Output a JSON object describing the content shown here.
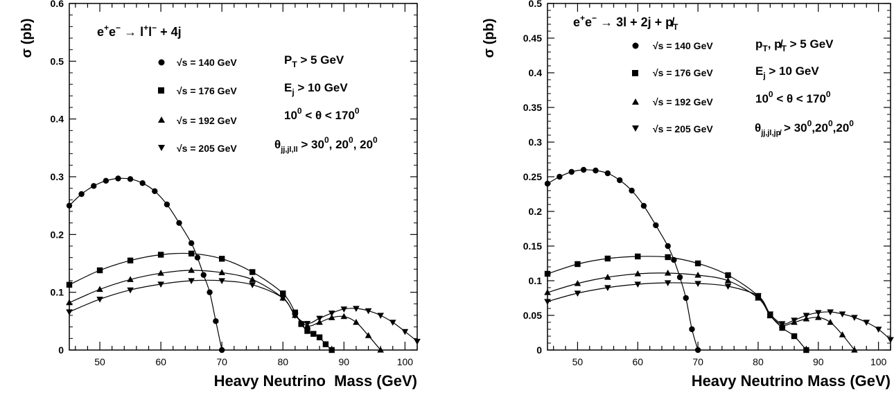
{
  "chart_data": [
    {
      "type": "line",
      "process": "e⁺e⁻ → l⁺l⁻ + 4j",
      "xlabel": "Heavy Neutrino  Mass (GeV)",
      "ylabel": "σ (pb)",
      "xlim": [
        45,
        102
      ],
      "ylim": [
        0,
        0.6
      ],
      "xticks": [
        "50",
        "60",
        "70",
        "80",
        "90",
        "100"
      ],
      "xtick_values": [
        50,
        60,
        70,
        80,
        90,
        100
      ],
      "yticks": [
        "0",
        "0.1",
        "0.2",
        "0.3",
        "0.4",
        "0.5",
        "0.6"
      ],
      "ytick_values": [
        0,
        0.1,
        0.2,
        0.3,
        0.4,
        0.5,
        0.6
      ],
      "cuts": [
        "P_T > 5 GeV",
        "E_j > 10 GeV",
        "10^0 < θ < 170^0",
        "θ_jj,jl,ll > 30^0, 20^0, 20^0"
      ],
      "series": [
        {
          "name": "√s = 140 GeV",
          "marker": "circle",
          "x": [
            45,
            47,
            49,
            51,
            53,
            55,
            57,
            59,
            61,
            63,
            65,
            66,
            67,
            68,
            69,
            70
          ],
          "y": [
            0.25,
            0.27,
            0.284,
            0.293,
            0.297,
            0.296,
            0.289,
            0.275,
            0.252,
            0.22,
            0.185,
            0.16,
            0.13,
            0.1,
            0.05,
            0.0
          ]
        },
        {
          "name": "√s = 176 GeV",
          "marker": "square",
          "x": [
            45,
            50,
            55,
            60,
            65,
            70,
            75,
            80,
            82,
            83,
            84,
            85,
            86,
            87,
            88
          ],
          "y": [
            0.113,
            0.138,
            0.155,
            0.165,
            0.167,
            0.158,
            0.135,
            0.098,
            0.065,
            0.045,
            0.033,
            0.028,
            0.022,
            0.01,
            0.0
          ]
        },
        {
          "name": "√s = 192 GeV",
          "marker": "triangle-up",
          "x": [
            45,
            50,
            55,
            60,
            65,
            70,
            75,
            80,
            82,
            84,
            86,
            88,
            90,
            92,
            94,
            96
          ],
          "y": [
            0.082,
            0.105,
            0.122,
            0.133,
            0.138,
            0.134,
            0.122,
            0.09,
            0.06,
            0.042,
            0.048,
            0.056,
            0.058,
            0.048,
            0.025,
            0.0
          ]
        },
        {
          "name": "√s = 205 GeV",
          "marker": "triangle-down",
          "x": [
            45,
            50,
            55,
            60,
            65,
            70,
            75,
            80,
            82,
            84,
            86,
            88,
            90,
            92,
            94,
            96,
            98,
            100,
            102
          ],
          "y": [
            0.066,
            0.088,
            0.104,
            0.114,
            0.12,
            0.12,
            0.113,
            0.09,
            0.06,
            0.046,
            0.055,
            0.064,
            0.071,
            0.072,
            0.068,
            0.06,
            0.048,
            0.032,
            0.015
          ]
        }
      ]
    },
    {
      "type": "line",
      "process": "e⁺e⁻ → 3l + 2j + p̸_T",
      "xlabel": "Heavy Neutrino Mass (GeV)",
      "ylabel": "σ (pb)",
      "xlim": [
        45,
        102
      ],
      "ylim": [
        0,
        0.5
      ],
      "xticks": [
        "50",
        "60",
        "70",
        "80",
        "90",
        "100"
      ],
      "xtick_values": [
        50,
        60,
        70,
        80,
        90,
        100
      ],
      "yticks": [
        "0",
        "0.05",
        "0.1",
        "0.15",
        "0.2",
        "0.25",
        "0.3",
        "0.35",
        "0.4",
        "0.45",
        "0.5"
      ],
      "ytick_values": [
        0,
        0.05,
        0.1,
        0.15,
        0.2,
        0.25,
        0.3,
        0.35,
        0.4,
        0.45,
        0.5
      ],
      "cuts": [
        "p_T, p̸_T > 5 GeV",
        "E_j > 10 GeV",
        "10^0 < θ < 170^0",
        "θ_jj,jl,jp̸ > 30^0,20^0,20^0"
      ],
      "series": [
        {
          "name": "√s = 140 GeV",
          "marker": "circle",
          "x": [
            45,
            47,
            49,
            51,
            53,
            55,
            57,
            59,
            61,
            63,
            65,
            66,
            67,
            68,
            69,
            70
          ],
          "y": [
            0.24,
            0.25,
            0.257,
            0.26,
            0.259,
            0.255,
            0.245,
            0.23,
            0.208,
            0.18,
            0.15,
            0.13,
            0.105,
            0.075,
            0.03,
            0.0
          ]
        },
        {
          "name": "√s = 176 GeV",
          "marker": "square",
          "x": [
            45,
            50,
            55,
            60,
            65,
            70,
            75,
            80,
            82,
            84,
            86,
            88
          ],
          "y": [
            0.11,
            0.124,
            0.132,
            0.135,
            0.134,
            0.125,
            0.108,
            0.078,
            0.05,
            0.032,
            0.02,
            0.0
          ]
        },
        {
          "name": "√s = 192 GeV",
          "marker": "triangle-up",
          "x": [
            45,
            50,
            55,
            60,
            65,
            70,
            75,
            80,
            82,
            84,
            86,
            88,
            90,
            92,
            94,
            96
          ],
          "y": [
            0.083,
            0.096,
            0.105,
            0.11,
            0.111,
            0.108,
            0.1,
            0.075,
            0.05,
            0.036,
            0.04,
            0.045,
            0.047,
            0.04,
            0.022,
            0.0
          ]
        },
        {
          "name": "√s = 205 GeV",
          "marker": "triangle-down",
          "x": [
            45,
            50,
            55,
            60,
            65,
            70,
            75,
            80,
            82,
            84,
            86,
            88,
            90,
            92,
            94,
            96,
            98,
            100,
            102
          ],
          "y": [
            0.07,
            0.082,
            0.09,
            0.095,
            0.097,
            0.096,
            0.092,
            0.078,
            0.052,
            0.038,
            0.043,
            0.05,
            0.054,
            0.055,
            0.052,
            0.047,
            0.04,
            0.03,
            0.015
          ]
        }
      ]
    }
  ]
}
